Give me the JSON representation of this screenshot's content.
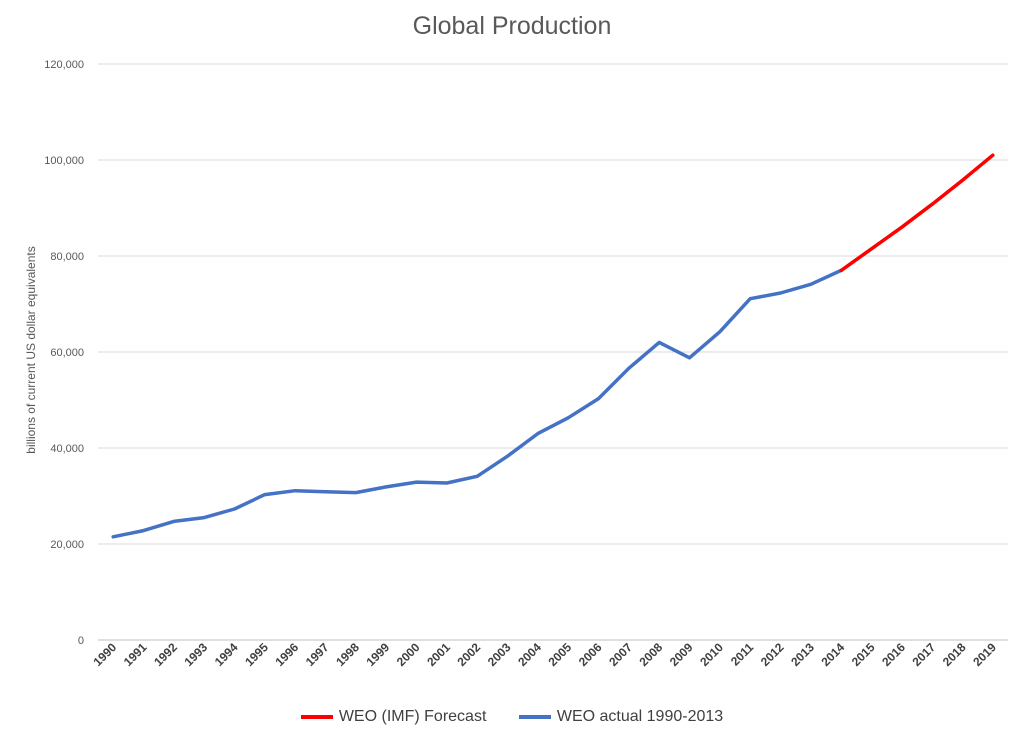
{
  "chart_data": {
    "type": "line",
    "title": "Global Production",
    "xlabel": "",
    "ylabel": "billions of current US dollar equivalents",
    "ylim": [
      0,
      120000
    ],
    "yticks": [
      0,
      20000,
      40000,
      60000,
      80000,
      100000,
      120000
    ],
    "ytick_labels": [
      "0",
      "20,000",
      "40,000",
      "60,000",
      "80,000",
      "100,000",
      "120,000"
    ],
    "categories": [
      "1990",
      "1991",
      "1992",
      "1993",
      "1994",
      "1995",
      "1996",
      "1997",
      "1998",
      "1999",
      "2000",
      "2001",
      "2002",
      "2003",
      "2004",
      "2005",
      "2006",
      "2007",
      "2008",
      "2009",
      "2010",
      "2011",
      "2012",
      "2013",
      "2014",
      "2015",
      "2016",
      "2017",
      "2018",
      "2019"
    ],
    "grid": true,
    "legend_position": "bottom",
    "series": [
      {
        "name": "WEO (IMF) Forecast",
        "color": "#ff0000",
        "x": [
          "2014",
          "2015",
          "2016",
          "2017",
          "2018",
          "2019"
        ],
        "values": [
          77000,
          81500,
          86000,
          90800,
          95800,
          101000
        ]
      },
      {
        "name": "WEO actual 1990-2013",
        "color": "#4472c4",
        "x": [
          "1990",
          "1991",
          "1992",
          "1993",
          "1994",
          "1995",
          "1996",
          "1997",
          "1998",
          "1999",
          "2000",
          "2001",
          "2002",
          "2003",
          "2004",
          "2005",
          "2006",
          "2007",
          "2008",
          "2009",
          "2010",
          "2011",
          "2012",
          "2013",
          "2014"
        ],
        "values": [
          21500,
          22800,
          24700,
          25500,
          27300,
          30300,
          31100,
          30900,
          30700,
          31900,
          32900,
          32700,
          34100,
          38300,
          43000,
          46300,
          50300,
          56600,
          62000,
          58800,
          64200,
          71100,
          72300,
          74100,
          77000
        ]
      }
    ]
  }
}
